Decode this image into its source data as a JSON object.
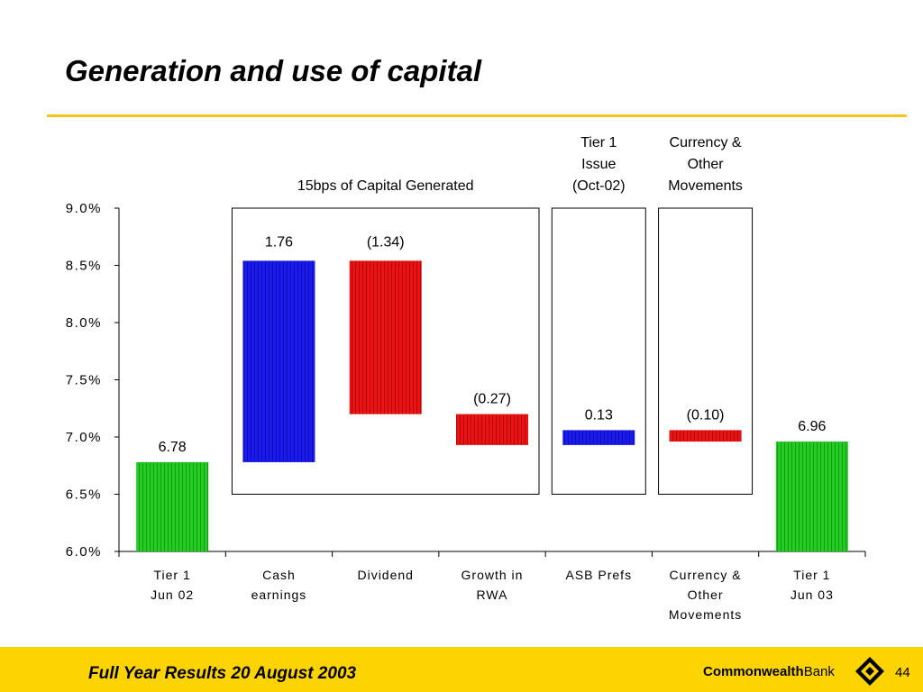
{
  "slide": {
    "title": "Generation and use of capital",
    "footer": "Full Year Results 20 August 2003",
    "brand_bold": "Commonwealth",
    "brand_light": "Bank",
    "page_number": "44"
  },
  "chart_data": {
    "type": "bar",
    "subtype": "waterfall",
    "y_axis": {
      "min": 6.0,
      "max": 9.0,
      "step": 0.5,
      "format": "percent",
      "ticks": [
        "9.0%",
        "8.5%",
        "8.0%",
        "7.5%",
        "7.0%",
        "6.5%",
        "6.0%"
      ]
    },
    "grid": false,
    "categories": [
      {
        "lines": [
          "Tier 1",
          "Jun 02"
        ]
      },
      {
        "lines": [
          "Cash",
          "earnings"
        ]
      },
      {
        "lines": [
          "Dividend"
        ]
      },
      {
        "lines": [
          "Growth in",
          "RWA"
        ]
      },
      {
        "lines": [
          "ASB Prefs"
        ]
      },
      {
        "lines": [
          "Currency &",
          "Other",
          "Movements"
        ]
      },
      {
        "lines": [
          "Tier 1",
          "Jun 03"
        ]
      }
    ],
    "bars": [
      {
        "low": 6.0,
        "high": 6.78,
        "label": "6.78",
        "kind": "total"
      },
      {
        "low": 6.78,
        "high": 8.54,
        "label": "1.76",
        "kind": "increase"
      },
      {
        "low": 7.2,
        "high": 8.54,
        "label": "(1.34)",
        "kind": "decrease"
      },
      {
        "low": 6.93,
        "high": 7.2,
        "label": "(0.27)",
        "kind": "decrease"
      },
      {
        "low": 6.93,
        "high": 7.06,
        "label": "0.13",
        "kind": "increase"
      },
      {
        "low": 6.96,
        "high": 7.06,
        "label": "(0.10)",
        "kind": "decrease"
      },
      {
        "low": 6.0,
        "high": 6.96,
        "label": "6.96",
        "kind": "total"
      }
    ],
    "groups": [
      {
        "from": 1,
        "to": 3,
        "lines": [
          "15bps of Capital Generated"
        ]
      },
      {
        "from": 4,
        "to": 4,
        "lines": [
          "Tier 1",
          "Issue",
          "(Oct-02)"
        ]
      },
      {
        "from": 5,
        "to": 5,
        "lines": [
          "Currency &",
          "Other",
          "Movements"
        ]
      }
    ],
    "colors": {
      "total": "#22cc22",
      "increase": "#1a1aee",
      "decrease": "#ee1111"
    }
  }
}
